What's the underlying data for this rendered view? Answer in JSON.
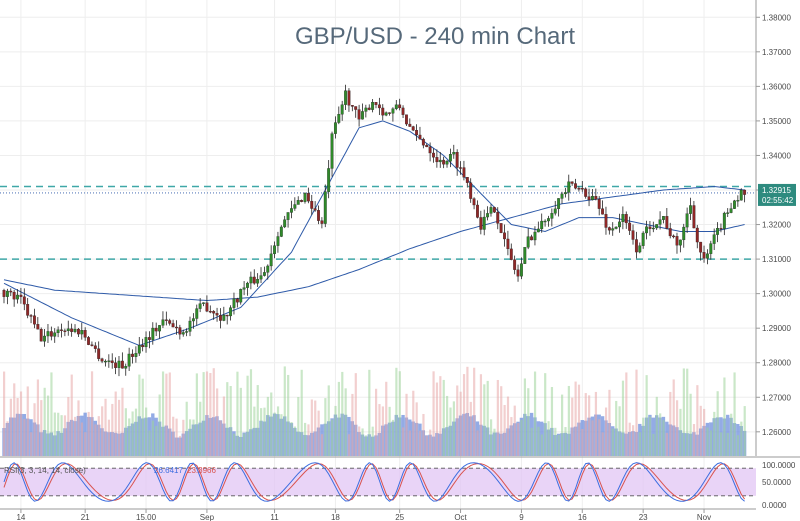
{
  "chart_data": {
    "type": "candlestick",
    "title": "GBP/USD - 240 min Chart",
    "price_axis": {
      "ylim": [
        1.253,
        1.385
      ],
      "ticks": [
        "1.38000",
        "1.37000",
        "1.36000",
        "1.35000",
        "1.34000",
        "1.33000",
        "1.32000",
        "1.31000",
        "1.30000",
        "1.29000",
        "1.28000",
        "1.27000",
        "1.26000"
      ],
      "tick_values": [
        1.38,
        1.37,
        1.36,
        1.35,
        1.34,
        1.33,
        1.32,
        1.31,
        1.3,
        1.29,
        1.28,
        1.27,
        1.26
      ]
    },
    "x_axis": {
      "ticks": [
        "14",
        "21",
        "15.00",
        "Sep",
        "11",
        "18",
        "25",
        "Oct",
        "9",
        "16",
        "23",
        "Nov"
      ],
      "tick_bars": [
        5,
        24,
        42,
        60,
        80,
        98,
        117,
        135,
        153,
        171,
        189,
        207
      ]
    },
    "current_price": "1.32915",
    "countdown": "02:55:42",
    "horizontal_levels": [
      1.331,
      1.31
    ],
    "candles_count": 220,
    "price_path": [
      [
        0,
        1.301
      ],
      [
        6,
        1.298
      ],
      [
        12,
        1.287
      ],
      [
        18,
        1.29
      ],
      [
        24,
        1.289
      ],
      [
        30,
        1.281
      ],
      [
        36,
        1.279
      ],
      [
        42,
        1.286
      ],
      [
        48,
        1.292
      ],
      [
        54,
        1.289
      ],
      [
        60,
        1.297
      ],
      [
        66,
        1.293
      ],
      [
        72,
        1.302
      ],
      [
        78,
        1.306
      ],
      [
        82,
        1.318
      ],
      [
        86,
        1.324
      ],
      [
        90,
        1.329
      ],
      [
        95,
        1.32
      ],
      [
        98,
        1.345
      ],
      [
        102,
        1.358
      ],
      [
        106,
        1.35
      ],
      [
        110,
        1.356
      ],
      [
        114,
        1.352
      ],
      [
        118,
        1.354
      ],
      [
        122,
        1.346
      ],
      [
        126,
        1.343
      ],
      [
        130,
        1.338
      ],
      [
        134,
        1.34
      ],
      [
        138,
        1.332
      ],
      [
        142,
        1.32
      ],
      [
        146,
        1.325
      ],
      [
        150,
        1.312
      ],
      [
        153,
        1.305
      ],
      [
        156,
        1.316
      ],
      [
        160,
        1.32
      ],
      [
        164,
        1.326
      ],
      [
        168,
        1.331
      ],
      [
        172,
        1.33
      ],
      [
        176,
        1.327
      ],
      [
        180,
        1.318
      ],
      [
        184,
        1.322
      ],
      [
        188,
        1.313
      ],
      [
        192,
        1.32
      ],
      [
        196,
        1.322
      ],
      [
        200,
        1.313
      ],
      [
        204,
        1.326
      ],
      [
        206,
        1.315
      ],
      [
        208,
        1.309
      ],
      [
        212,
        1.318
      ],
      [
        216,
        1.326
      ],
      [
        219,
        1.329
      ]
    ],
    "ma_fast_path": [
      [
        0,
        1.303
      ],
      [
        20,
        1.293
      ],
      [
        40,
        1.285
      ],
      [
        55,
        1.29
      ],
      [
        70,
        1.296
      ],
      [
        85,
        1.312
      ],
      [
        95,
        1.33
      ],
      [
        105,
        1.348
      ],
      [
        112,
        1.35
      ],
      [
        120,
        1.347
      ],
      [
        130,
        1.34
      ],
      [
        140,
        1.33
      ],
      [
        150,
        1.32
      ],
      [
        160,
        1.318
      ],
      [
        170,
        1.322
      ],
      [
        180,
        1.322
      ],
      [
        190,
        1.32
      ],
      [
        200,
        1.318
      ],
      [
        210,
        1.318
      ],
      [
        219,
        1.32
      ]
    ],
    "ma_slow_path": [
      [
        0,
        1.304
      ],
      [
        15,
        1.301
      ],
      [
        30,
        1.3
      ],
      [
        45,
        1.299
      ],
      [
        60,
        1.298
      ],
      [
        75,
        1.299
      ],
      [
        90,
        1.302
      ],
      [
        105,
        1.307
      ],
      [
        120,
        1.313
      ],
      [
        135,
        1.318
      ],
      [
        150,
        1.322
      ],
      [
        165,
        1.326
      ],
      [
        180,
        1.328
      ],
      [
        195,
        1.33
      ],
      [
        210,
        1.331
      ],
      [
        219,
        1.33
      ]
    ],
    "volume": {
      "scale_max": 1.0
    },
    "rsi": {
      "label": "RSI(3, 3, 14, 14, close)",
      "value_blue": "26.6417",
      "value_red": "23.3966",
      "ylim": [
        0,
        100
      ],
      "ticks": [
        "100.0000",
        "50.0000",
        "0.0000"
      ],
      "tick_values": [
        100,
        50,
        0
      ],
      "bands": [
        80,
        20
      ]
    },
    "colors": {
      "up": "#2f8a2a",
      "down": "#8f2727",
      "ma": "#2e5aa8",
      "level": "#3fa7a7",
      "volume_blue": "#6f8fdc",
      "rsi_fill": "#e2c6f4",
      "rsi_blue": "#3d6ee0",
      "rsi_red": "#d9534f",
      "price_box": "#2e8b7f"
    }
  }
}
